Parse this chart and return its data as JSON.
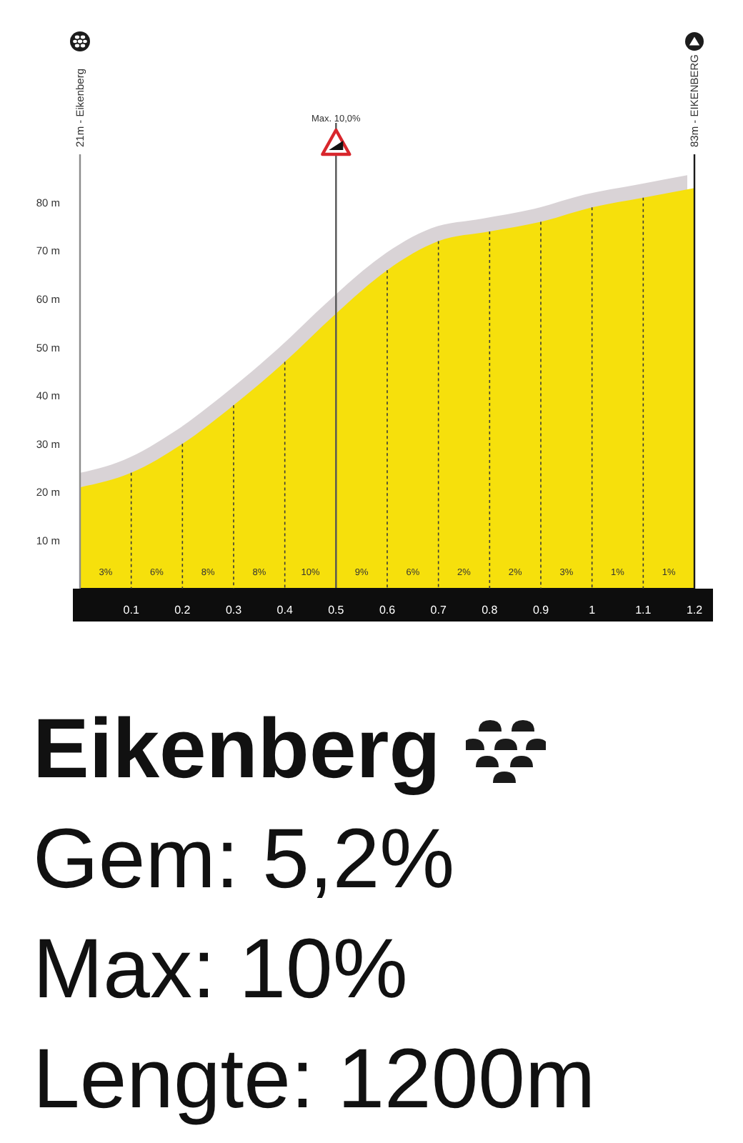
{
  "chart_data": {
    "type": "area",
    "title": "Eikenberg",
    "x": [
      0,
      0.1,
      0.2,
      0.3,
      0.4,
      0.5,
      0.6,
      0.7,
      0.8,
      0.9,
      1,
      1.1,
      1.2
    ],
    "values": [
      21,
      24,
      30,
      38,
      47,
      57,
      66,
      72,
      74,
      76,
      79,
      81,
      83
    ],
    "color": "#f6e00c",
    "xlim": [
      0,
      1.2
    ],
    "xticks": [
      0.1,
      0.2,
      0.3,
      0.4,
      0.5,
      0.6,
      0.7,
      0.8,
      0.9,
      1,
      1.1,
      1.2
    ],
    "ylim": [
      0,
      90
    ],
    "yticks": [
      {
        "value": 10,
        "label": "10 m"
      },
      {
        "value": 20,
        "label": "20 m"
      },
      {
        "value": 30,
        "label": "30 m"
      },
      {
        "value": 40,
        "label": "40 m"
      },
      {
        "value": 50,
        "label": "50 m"
      },
      {
        "value": 60,
        "label": "60 m"
      },
      {
        "value": 70,
        "label": "70 m"
      },
      {
        "value": 80,
        "label": "80 m"
      }
    ],
    "grid": "x",
    "ref_lines": [
      {
        "axis": "x",
        "value": 0,
        "label": "21m - Eikenberg",
        "color": "#8c8c8c"
      },
      {
        "axis": "x",
        "value": 1.2,
        "label": "83m - EIKENBERG",
        "color": "#1a1a1a"
      },
      {
        "axis": "x",
        "value": 0.5,
        "label": "Max. 10,0%",
        "color": "#555555"
      }
    ],
    "annotations": [
      "3%",
      "6%",
      "8%",
      "8%",
      "10%",
      "9%",
      "6%",
      "2%",
      "2%",
      "3%",
      "1%",
      "1%",
      "Gem: 5,2%",
      "Max: 10%",
      "Lengte: 1200m"
    ]
  }
}
